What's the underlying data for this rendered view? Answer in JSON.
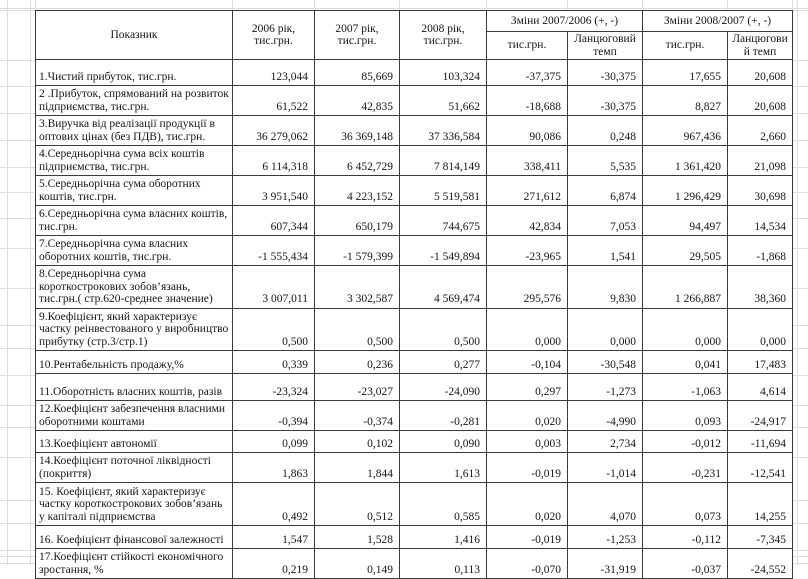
{
  "colors": {
    "border": "#3a3a3a",
    "gridline": "#dcdcdc",
    "text": "#161616"
  },
  "table": {
    "header": {
      "indicator": "Показник",
      "year_cols": [
        "2006 рік, тис.грн.",
        "2007 рік, тис.грн.",
        "2008 рік, тис.грн."
      ],
      "change_groups": [
        {
          "label": "Зміни  2007/2006 (+, -)",
          "sub": [
            "тис.грн.",
            "Ланцюговий темп"
          ]
        },
        {
          "label": "Зміни  2008/2007 (+, -)",
          "sub": [
            "тис.грн.",
            "Ланцюговий темп"
          ]
        }
      ]
    },
    "rows": [
      {
        "label": "1.Чистий прибуток, тис.грн.",
        "values": [
          "123,044",
          "85,669",
          "103,324",
          "-37,375",
          "-30,375",
          "17,655",
          "20,608"
        ]
      },
      {
        "label": "2 .Прибуток, спрямований на розвиток підприємства, тис.грн.",
        "values": [
          "61,522",
          "42,835",
          "51,662",
          "-18,688",
          "-30,375",
          "8,827",
          "20,608"
        ]
      },
      {
        "label": "3.Виручка від реалізації продукції в оптових цінах (без ПДВ), тис.грн.",
        "values": [
          "36 279,062",
          "36 369,148",
          "37 336,584",
          "90,086",
          "0,248",
          "967,436",
          "2,660"
        ]
      },
      {
        "label": "4.Середньорічна сума всіх коштів підприємства, тис.грн.",
        "values": [
          "6 114,318",
          "6 452,729",
          "7 814,149",
          "338,411",
          "5,535",
          "1 361,420",
          "21,098"
        ]
      },
      {
        "label": "5.Середньорічна сума  оборотних коштів, тис.грн.",
        "values": [
          "3 951,540",
          "4 223,152",
          "5 519,581",
          "271,612",
          "6,874",
          "1 296,429",
          "30,698"
        ]
      },
      {
        "label": "6.Середньорічна сума  власних коштів, тис.грн.",
        "values": [
          "607,344",
          "650,179",
          "744,675",
          "42,834",
          "7,053",
          "94,497",
          "14,534"
        ]
      },
      {
        "label": "7.Середньорічна сума  власних оборотних коштів, тис.грн.",
        "values": [
          "-1 555,434",
          "-1 579,399",
          "-1 549,894",
          "-23,965",
          "1,541",
          "29,505",
          "-1,868"
        ]
      },
      {
        "label": "8.Середньорічна сума короткострокових зобов’язань, тис.грн.( стр.620-среднее значение)",
        "values": [
          "3 007,011",
          "3 302,587",
          "4 569,474",
          "295,576",
          "9,830",
          "1 266,887",
          "38,360"
        ]
      },
      {
        "label": "9.Коефіцієнт, який характеризує частку реінвестованого у виробництво прибутку (стр.3/стр.1)",
        "values": [
          "0,500",
          "0,500",
          "0,500",
          "0,000",
          "0,000",
          "0,000",
          "0,000"
        ]
      },
      {
        "label": "10.Рентабельність продажу,%",
        "values": [
          "0,339",
          "0,236",
          "0,277",
          "-0,104",
          "-30,548",
          "0,041",
          "17,483"
        ]
      },
      {
        "label": "11.Оборотність власних коштів, разів",
        "values": [
          "-23,324",
          "-23,027",
          "-24,090",
          "0,297",
          "-1,273",
          "-1,063",
          "4,614"
        ]
      },
      {
        "label": "12.Коефіцієнт забезпечення  власними оборотними коштами",
        "values": [
          "-0,394",
          "-0,374",
          "-0,281",
          "0,020",
          "-4,990",
          "0,093",
          "-24,917"
        ]
      },
      {
        "label": "13.Коефіцієнт автономії",
        "values": [
          "0,099",
          "0,102",
          "0,090",
          "0,003",
          "2,734",
          "-0,012",
          "-11,694"
        ]
      },
      {
        "label": "14.Коефіцієнт поточної ліквідності (покриття)",
        "values": [
          "1,863",
          "1,844",
          "1,613",
          "-0,019",
          "-1,014",
          "-0,231",
          "-12,541"
        ]
      },
      {
        "label": "15. Коефіцієнт, який характеризує частку короткострокових зобов’язань у капіталі підприємства",
        "values": [
          "0,492",
          "0,512",
          "0,585",
          "0,020",
          "4,070",
          "0,073",
          "14,255"
        ]
      },
      {
        "label": "16. Коефіцієнт фінансової залежності",
        "values": [
          "1,547",
          "1,528",
          "1,416",
          "-0,019",
          "-1,253",
          "-0,112",
          "-7,345"
        ]
      },
      {
        "label": "17.Коефіцієнт стійкості економічного зростання, %",
        "values": [
          "0,219",
          "0,149",
          "0,113",
          "-0,070",
          "-31,919",
          "-0,037",
          "-24,552"
        ]
      }
    ]
  }
}
